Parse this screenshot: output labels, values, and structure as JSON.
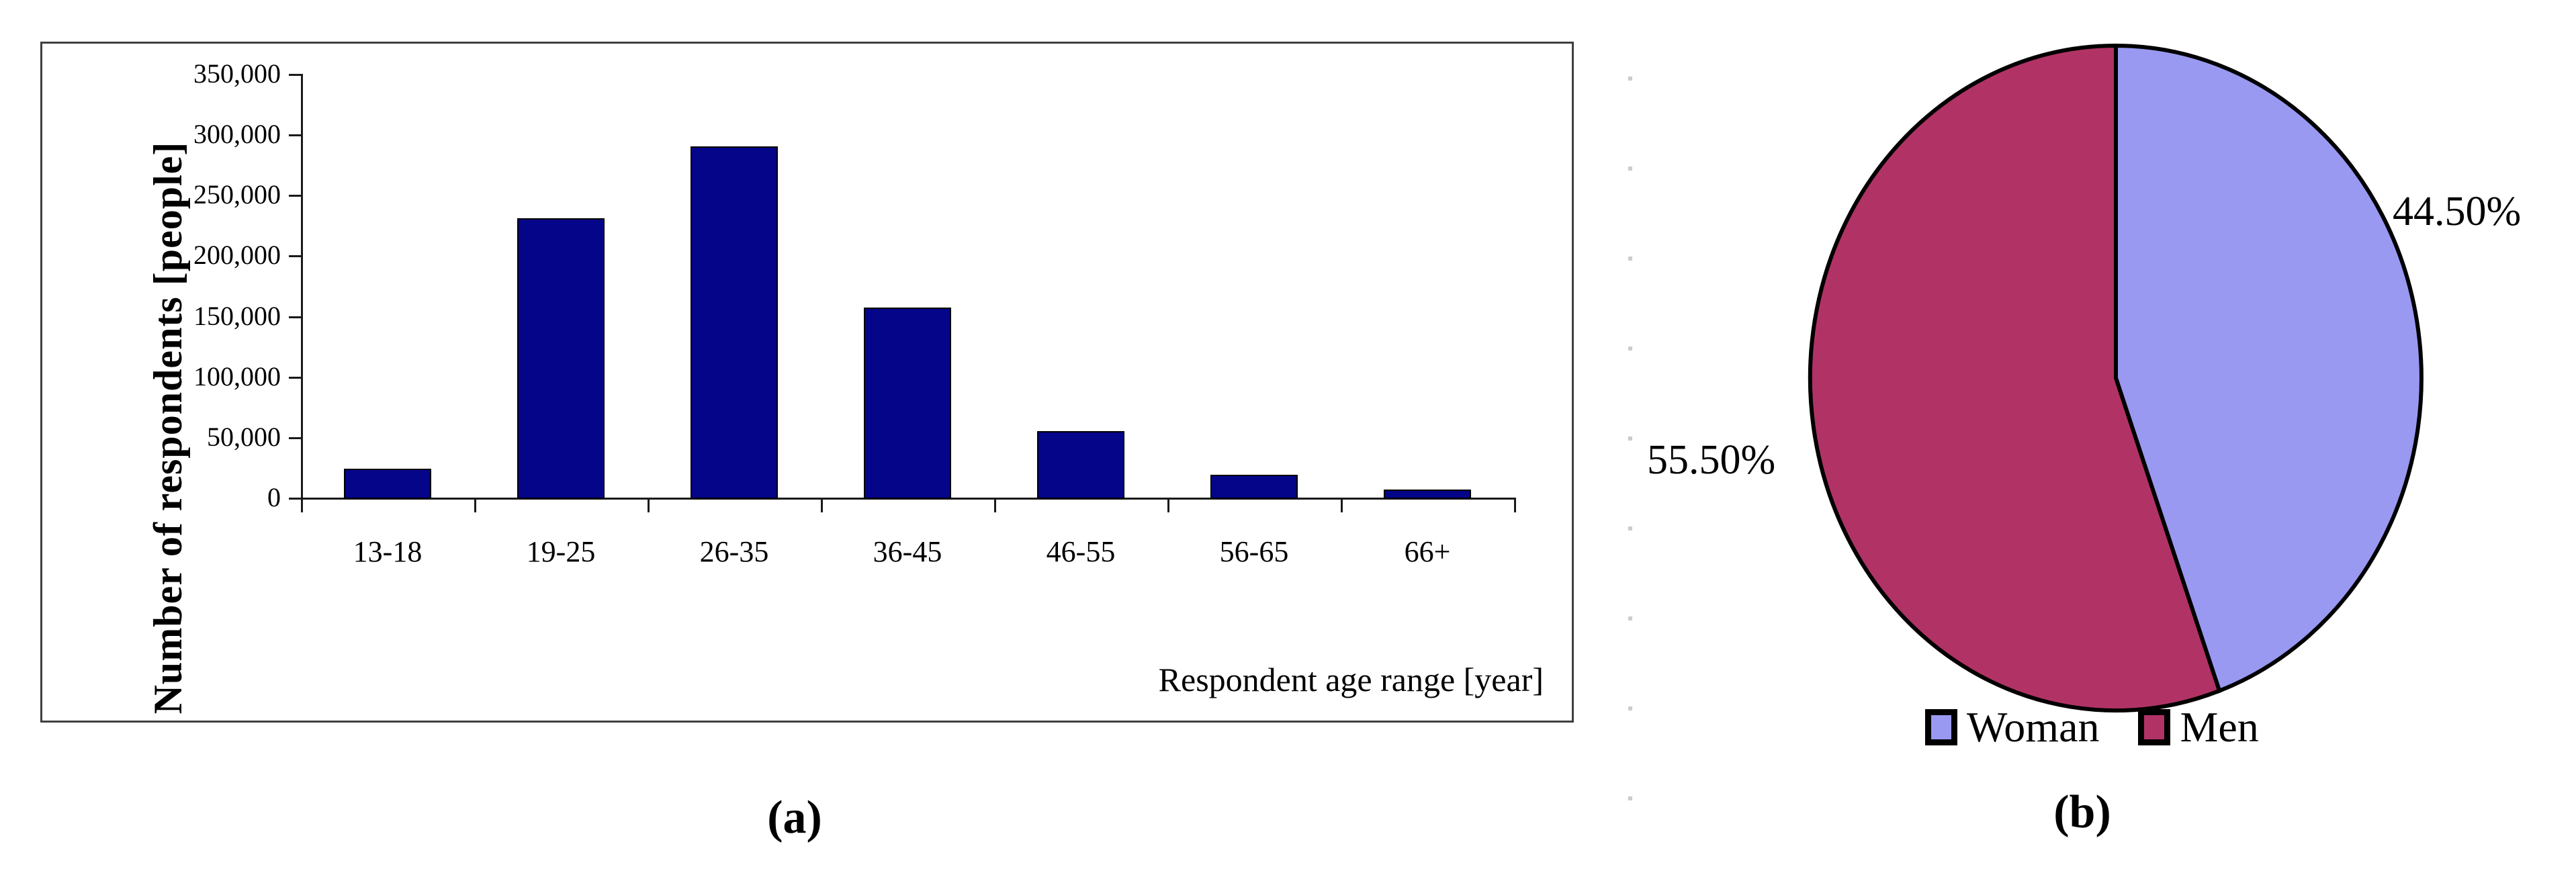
{
  "page": {
    "background": "#ffffff",
    "text_color": "#000000"
  },
  "chart_data": [
    {
      "type": "bar",
      "caption": "(a)",
      "categories": [
        "13-18",
        "19-25",
        "26-35",
        "36-45",
        "46-55",
        "56-65",
        "66+"
      ],
      "values": [
        24000,
        231000,
        290000,
        157000,
        55000,
        19000,
        6500
      ],
      "xlabel": "Respondent age range [year]",
      "ylabel": "Number of respondents [people]",
      "ylim": [
        0,
        350000
      ],
      "ytick_interval": 50000,
      "ytick_labels": [
        "0",
        "50,000",
        "100,000",
        "150,000",
        "200,000",
        "250,000",
        "300,000",
        "350,000"
      ],
      "grid": false,
      "bar_color": "#05058A",
      "bar_border_color": "#000000",
      "frame_border_color": "#3f3f3f"
    },
    {
      "type": "pie",
      "caption": "(b)",
      "start_angle_deg": 0,
      "direction": "clockwise",
      "slices": [
        {
          "label": "Woman",
          "value": 44.5,
          "display": "44.50%",
          "color": "#9999F2"
        },
        {
          "label": "Men",
          "value": 55.5,
          "display": "55.50%",
          "color": "#B13366"
        }
      ],
      "outline_color": "#000000",
      "legend_position": "bottom",
      "faint_axis_dot_color": "#cccccc"
    }
  ]
}
